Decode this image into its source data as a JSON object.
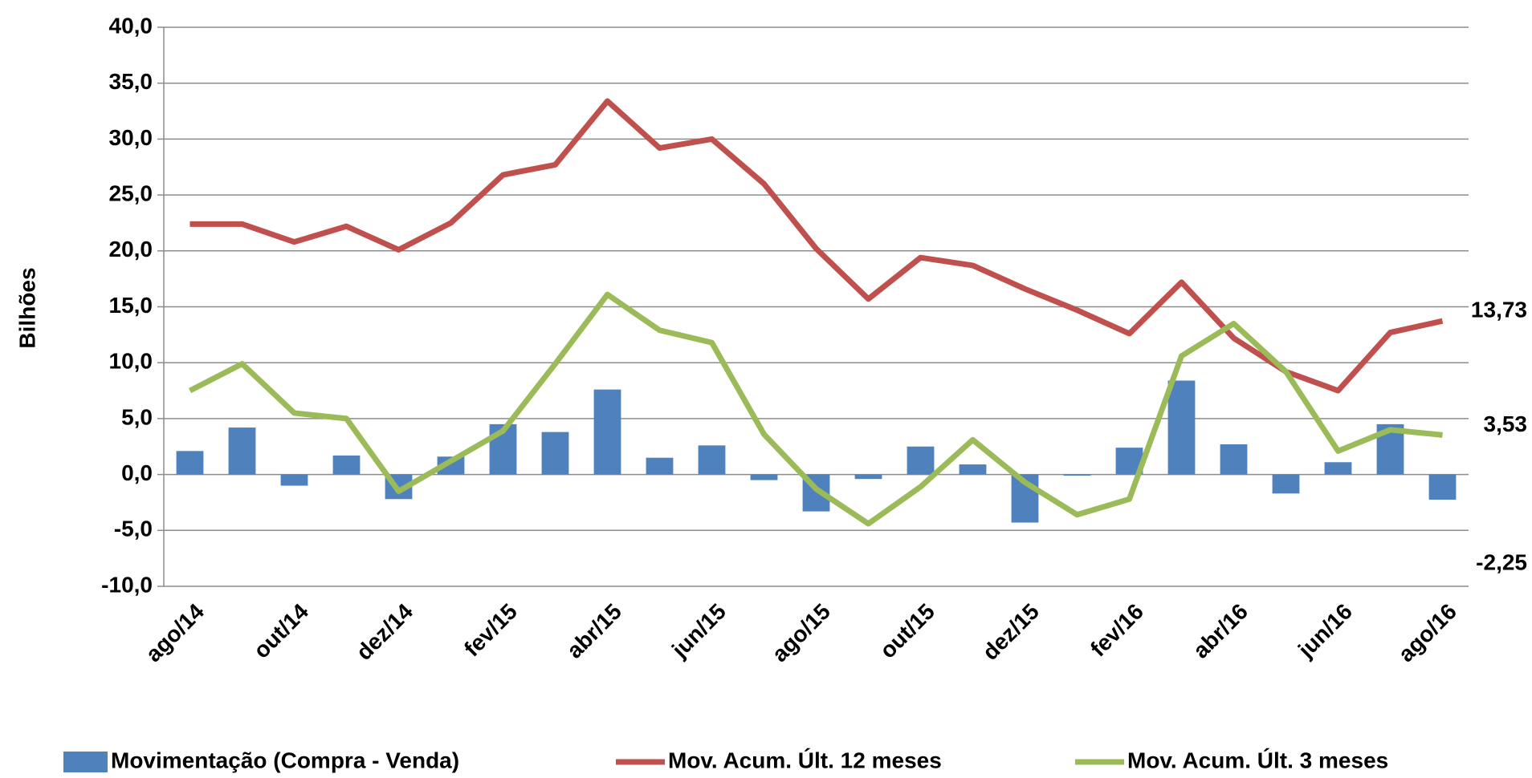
{
  "chart_data": {
    "type": "combo",
    "y_label": "Bilhões",
    "categories": [
      "ago/14",
      null,
      "out/14",
      null,
      "dez/14",
      null,
      "fev/15",
      null,
      "abr/15",
      null,
      "jun/15",
      null,
      "ago/15",
      null,
      "out/15",
      null,
      "dez/15",
      null,
      "fev/16",
      null,
      "abr/16",
      null,
      "jun/16",
      null,
      "ago/16"
    ],
    "ylim": [
      -10,
      40
    ],
    "yticks": [
      {
        "value": -10,
        "label": "-10,0"
      },
      {
        "value": -5,
        "label": "-5,0"
      },
      {
        "value": 0,
        "label": "0,0"
      },
      {
        "value": 5,
        "label": "5,0"
      },
      {
        "value": 10,
        "label": "10,0"
      },
      {
        "value": 15,
        "label": "15,0"
      },
      {
        "value": 20,
        "label": "20,0"
      },
      {
        "value": 25,
        "label": "25,0"
      },
      {
        "value": 30,
        "label": "30,0"
      },
      {
        "value": 35,
        "label": "35,0"
      },
      {
        "value": 40,
        "label": "40,0"
      }
    ],
    "grid": true,
    "legend": "bottom",
    "series": [
      {
        "name": "Movimentação (Compra - Venda)",
        "type": "bar",
        "color": "#4f81bd",
        "label_color": "#4f81bd",
        "values": [
          2.1,
          4.2,
          -1.0,
          1.7,
          -2.2,
          1.6,
          4.5,
          3.8,
          7.6,
          1.5,
          2.6,
          -0.5,
          -3.3,
          -0.4,
          2.5,
          0.9,
          -4.3,
          -0.1,
          2.4,
          8.4,
          2.7,
          -1.7,
          1.1,
          4.5,
          -2.25
        ],
        "value_labels": [
          null,
          null,
          null,
          null,
          null,
          null,
          null,
          null,
          null,
          null,
          null,
          null,
          null,
          null,
          null,
          null,
          null,
          null,
          null,
          null,
          null,
          null,
          null,
          null,
          "-2,25"
        ]
      },
      {
        "name": "Mov. Acum. Últ. 12 meses",
        "type": "line",
        "color": "#c0504d",
        "label_color": "#c00000",
        "values": [
          22.4,
          22.4,
          20.8,
          22.2,
          20.1,
          22.5,
          26.8,
          27.7,
          33.4,
          29.2,
          30.0,
          26.0,
          20.2,
          15.7,
          19.4,
          18.7,
          16.6,
          14.7,
          12.6,
          17.2,
          12.2,
          9.2,
          7.5,
          12.7,
          13.73
        ],
        "value_labels": [
          null,
          null,
          null,
          null,
          null,
          null,
          null,
          null,
          null,
          null,
          null,
          null,
          null,
          null,
          null,
          null,
          null,
          null,
          null,
          null,
          null,
          null,
          null,
          null,
          "13,73"
        ]
      },
      {
        "name": "Mov. Acum. Últ. 3 meses",
        "type": "line",
        "color": "#9bbb59",
        "label_color": "#77933c",
        "values": [
          7.5,
          9.9,
          5.5,
          5.0,
          -1.5,
          1.2,
          3.9,
          9.9,
          16.1,
          12.9,
          11.8,
          3.6,
          -1.3,
          -4.4,
          -1.1,
          3.1,
          -0.7,
          -3.6,
          -2.2,
          10.6,
          13.5,
          9.2,
          2.1,
          4.0,
          3.53
        ],
        "value_labels": [
          null,
          null,
          null,
          null,
          null,
          null,
          null,
          null,
          null,
          null,
          null,
          null,
          null,
          null,
          null,
          null,
          null,
          null,
          null,
          null,
          null,
          null,
          null,
          null,
          "3,53"
        ]
      }
    ]
  }
}
